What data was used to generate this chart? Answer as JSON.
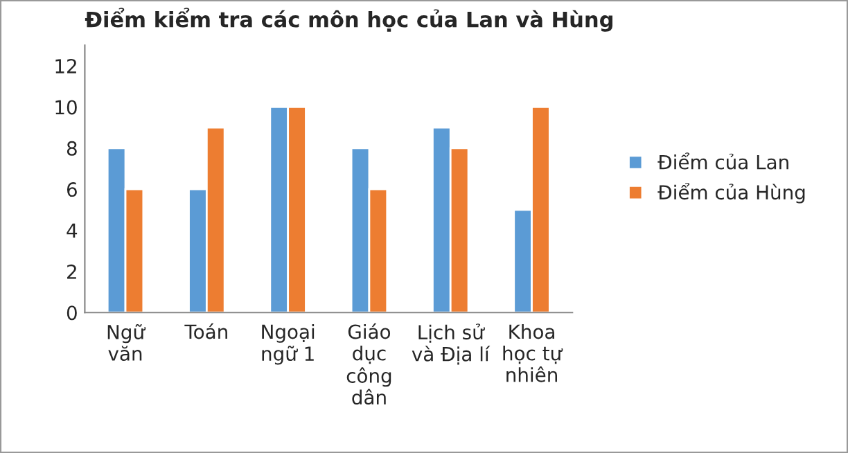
{
  "chart_data": {
    "type": "bar",
    "title": "Điểm kiểm tra các môn học của Lan và Hùng",
    "categories": [
      "Ngữ\nvăn",
      "Toán",
      "Ngoại\nngữ 1",
      "Giáo\ndục\ncông\ndân",
      "Lịch sử\nvà Địa lí",
      "Khoa\nhọc tự\nnhiên"
    ],
    "series": [
      {
        "name": "Điểm của Lan",
        "color": "#5b9bd5",
        "values": [
          8,
          6,
          10,
          8,
          9,
          5
        ]
      },
      {
        "name": "Điểm của Hùng",
        "color": "#ed7d31",
        "values": [
          6,
          9,
          10,
          6,
          8,
          10
        ]
      }
    ],
    "ylim": [
      0,
      13
    ],
    "yticks": [
      0,
      2,
      4,
      6,
      8,
      10,
      12
    ],
    "grid": false,
    "legend": "right"
  }
}
